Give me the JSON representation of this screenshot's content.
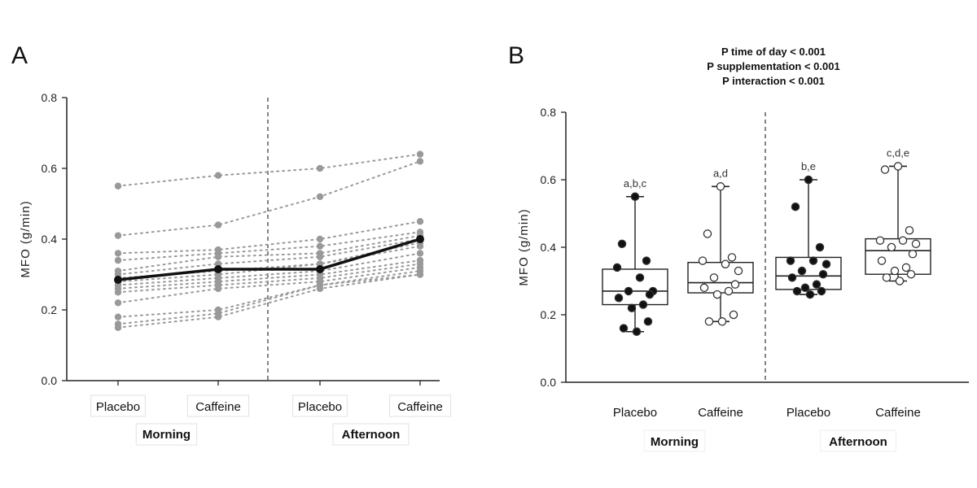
{
  "chart_data": [
    {
      "panel": "A",
      "type": "line",
      "ylabel": "MFO (g/min)",
      "ylim": [
        0,
        0.8
      ],
      "yticks": [
        "0.0",
        "0.2",
        "0.4",
        "0.6",
        "0.8"
      ],
      "categories": [
        "Placebo",
        "Caffeine",
        "Placebo",
        "Caffeine"
      ],
      "groups": [
        "Morning",
        "Afternoon"
      ],
      "individuals": [
        [
          0.55,
          0.58,
          0.6,
          0.64
        ],
        [
          0.41,
          0.44,
          0.52,
          0.62
        ],
        [
          0.36,
          0.37,
          0.4,
          0.45
        ],
        [
          0.34,
          0.36,
          0.38,
          0.42
        ],
        [
          0.31,
          0.35,
          0.36,
          0.41
        ],
        [
          0.3,
          0.33,
          0.35,
          0.4
        ],
        [
          0.29,
          0.31,
          0.33,
          0.39
        ],
        [
          0.28,
          0.3,
          0.33,
          0.38
        ],
        [
          0.27,
          0.29,
          0.31,
          0.36
        ],
        [
          0.26,
          0.28,
          0.3,
          0.34
        ],
        [
          0.25,
          0.27,
          0.29,
          0.33
        ],
        [
          0.22,
          0.26,
          0.28,
          0.32
        ],
        [
          0.18,
          0.2,
          0.27,
          0.31
        ],
        [
          0.16,
          0.19,
          0.27,
          0.3
        ],
        [
          0.15,
          0.18,
          0.26,
          0.3
        ]
      ],
      "mean": [
        0.285,
        0.315,
        0.315,
        0.4
      ]
    },
    {
      "panel": "B",
      "type": "box",
      "ylabel": "MFO (g/min)",
      "ylim": [
        0,
        0.8
      ],
      "yticks": [
        "0.0",
        "0.2",
        "0.4",
        "0.6",
        "0.8"
      ],
      "categories": [
        "Placebo",
        "Caffeine",
        "Placebo",
        "Caffeine"
      ],
      "groups": [
        "Morning",
        "Afternoon"
      ],
      "stats": [
        "P time of day < 0.001",
        "P supplementation < 0.001",
        "P interaction < 0.001"
      ],
      "boxes": [
        {
          "label": "a,b,c",
          "min": 0.15,
          "q1": 0.23,
          "median": 0.27,
          "q3": 0.335,
          "max": 0.55,
          "filled": true,
          "points": [
            0.55,
            0.41,
            0.36,
            0.34,
            0.31,
            0.27,
            0.27,
            0.26,
            0.25,
            0.23,
            0.22,
            0.18,
            0.16,
            0.15
          ]
        },
        {
          "label": "a,d",
          "min": 0.18,
          "q1": 0.265,
          "median": 0.295,
          "q3": 0.355,
          "max": 0.58,
          "filled": false,
          "points": [
            0.58,
            0.44,
            0.37,
            0.36,
            0.35,
            0.33,
            0.31,
            0.29,
            0.28,
            0.27,
            0.26,
            0.2,
            0.18,
            0.18
          ]
        },
        {
          "label": "b,e",
          "min": 0.26,
          "q1": 0.275,
          "median": 0.315,
          "q3": 0.37,
          "max": 0.6,
          "filled": true,
          "points": [
            0.6,
            0.52,
            0.4,
            0.36,
            0.36,
            0.35,
            0.33,
            0.32,
            0.31,
            0.29,
            0.28,
            0.27,
            0.27,
            0.26
          ]
        },
        {
          "label": "c,d,e",
          "min": 0.3,
          "q1": 0.32,
          "median": 0.39,
          "q3": 0.425,
          "max": 0.64,
          "filled": false,
          "points": [
            0.64,
            0.63,
            0.45,
            0.42,
            0.42,
            0.41,
            0.4,
            0.38,
            0.36,
            0.34,
            0.33,
            0.32,
            0.31,
            0.3
          ]
        }
      ]
    }
  ]
}
